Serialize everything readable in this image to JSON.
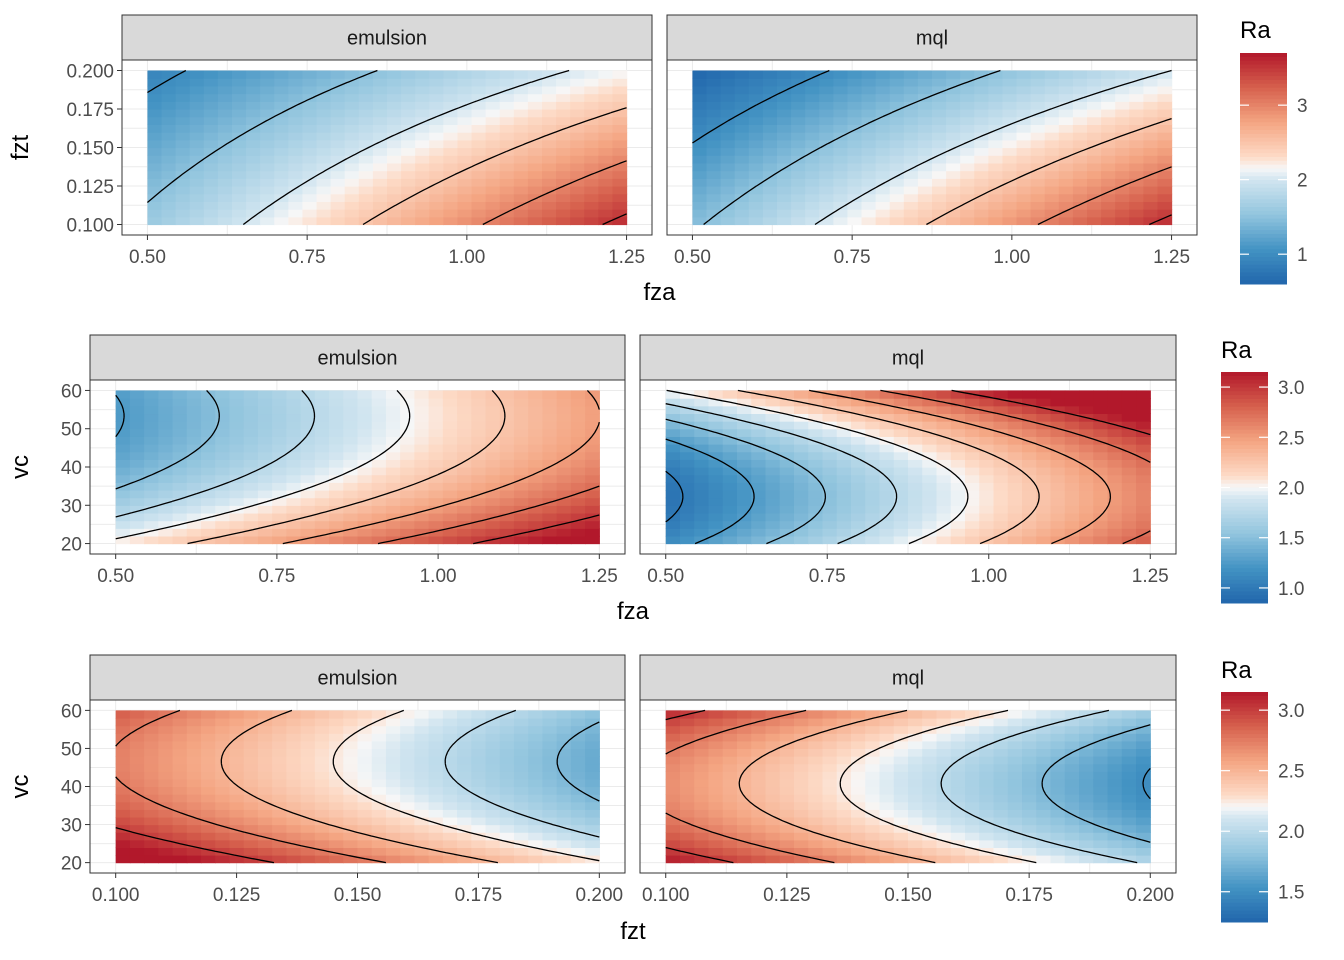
{
  "chart_data": [
    {
      "type": "heatmap",
      "title": "",
      "xlabel": "fza",
      "ylabel": "fzt",
      "legend_title": "Ra",
      "legend_ticks": [
        1,
        2,
        3
      ],
      "color_range": [
        0.6,
        3.7
      ],
      "xlim": [
        0.5,
        1.25
      ],
      "ylim": [
        0.1,
        0.2
      ],
      "xticks": [
        0.5,
        0.75,
        1.0,
        1.25
      ],
      "xtick_labels": [
        "0.50",
        "0.75",
        "1.00",
        "1.25"
      ],
      "yticks": [
        0.1,
        0.125,
        0.15,
        0.175,
        0.2
      ],
      "ytick_labels": [
        "0.100",
        "0.125",
        "0.150",
        "0.175",
        "0.200"
      ],
      "contour_levels": [
        1.0,
        1.5,
        2.0,
        2.5,
        3.0,
        3.5
      ],
      "panels": [
        {
          "label": "emulsion",
          "corner_values": {
            "x_min_y_min": 1.6,
            "x_max_y_min": 3.6,
            "x_min_y_max": 0.9,
            "x_max_y_max": 2.15
          }
        },
        {
          "label": "mql",
          "corner_values": {
            "x_min_y_min": 1.45,
            "x_max_y_min": 3.6,
            "x_min_y_max": 0.6,
            "x_max_y_max": 2.0
          }
        }
      ]
    },
    {
      "type": "heatmap",
      "title": "",
      "xlabel": "fza",
      "ylabel": "vc",
      "legend_title": "Ra",
      "legend_ticks": [
        1.0,
        1.5,
        2.0,
        2.5,
        3.0
      ],
      "legend_tick_labels": [
        "1.0",
        "1.5",
        "2.0",
        "2.5",
        "3.0"
      ],
      "color_range": [
        0.85,
        3.15
      ],
      "xlim": [
        0.5,
        1.25
      ],
      "ylim": [
        20,
        60
      ],
      "xticks": [
        0.5,
        0.75,
        1.0,
        1.25
      ],
      "xtick_labels": [
        "0.50",
        "0.75",
        "1.00",
        "1.25"
      ],
      "yticks": [
        20,
        30,
        40,
        50,
        60
      ],
      "ytick_labels": [
        "20",
        "30",
        "40",
        "50",
        "60"
      ],
      "contour_levels": [
        1.0,
        1.25,
        1.5,
        1.75,
        2.0,
        2.25,
        2.5,
        2.75,
        3.0
      ],
      "panels": [
        {
          "label": "emulsion",
          "base_at_x_min": 1.28,
          "base_at_x_max": 2.55,
          "curvature": 0.3,
          "y_center": 45,
          "y_slope": -0.25
        },
        {
          "label": "mql",
          "base_at_x_min": 0.95,
          "base_at_x_max": 2.65,
          "curvature": 0.55,
          "y_center": 35,
          "y_slope": 0.15
        }
      ]
    },
    {
      "type": "heatmap",
      "title": "",
      "xlabel": "fzt",
      "ylabel": "vc",
      "legend_title": "Ra",
      "legend_ticks": [
        1.5,
        2.0,
        2.5,
        3.0
      ],
      "legend_tick_labels": [
        "1.5",
        "2.0",
        "2.5",
        "3.0"
      ],
      "color_range": [
        1.25,
        3.15
      ],
      "xlim": [
        0.1,
        0.2
      ],
      "ylim": [
        20,
        60
      ],
      "xticks": [
        0.1,
        0.125,
        0.15,
        0.175,
        0.2
      ],
      "xtick_labels": [
        "0.100",
        "0.125",
        "0.150",
        "0.175",
        "0.200"
      ],
      "yticks": [
        20,
        30,
        40,
        50,
        60
      ],
      "ytick_labels": [
        "20",
        "30",
        "40",
        "50",
        "60"
      ],
      "contour_levels": [
        1.5,
        1.75,
        2.0,
        2.25,
        2.5,
        2.75,
        3.0
      ],
      "panels": [
        {
          "label": "emulsion",
          "base_at_x_min": 2.8,
          "base_at_x_max": 1.72,
          "curvature": 0.35,
          "y_center": 38,
          "y_slope": -0.3
        },
        {
          "label": "mql",
          "base_at_x_min": 2.75,
          "base_at_x_max": 1.55,
          "curvature": 0.45,
          "y_center": 33,
          "y_slope": -0.35
        }
      ]
    }
  ]
}
